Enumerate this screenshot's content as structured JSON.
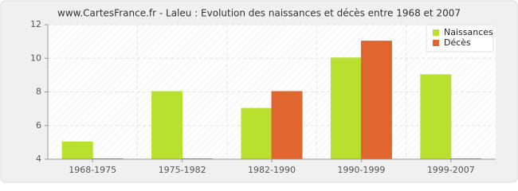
{
  "chart_data": {
    "type": "bar",
    "title": "www.CartesFrance.fr - Laleu : Evolution des naissances et décès entre 1968 et 2007",
    "categories": [
      "1968-1975",
      "1975-1982",
      "1982-1990",
      "1990-1999",
      "1999-2007"
    ],
    "series": [
      {
        "name": "Naissances",
        "color": "#b9e02f",
        "values": [
          5,
          8,
          7,
          10,
          9
        ]
      },
      {
        "name": "Décès",
        "color": "#e0652f",
        "values": [
          4,
          4,
          8,
          11,
          4
        ]
      }
    ],
    "ylim": [
      4,
      12
    ],
    "yticks": [
      4,
      6,
      8,
      10,
      12
    ],
    "grid": true,
    "legend": "top-right"
  }
}
